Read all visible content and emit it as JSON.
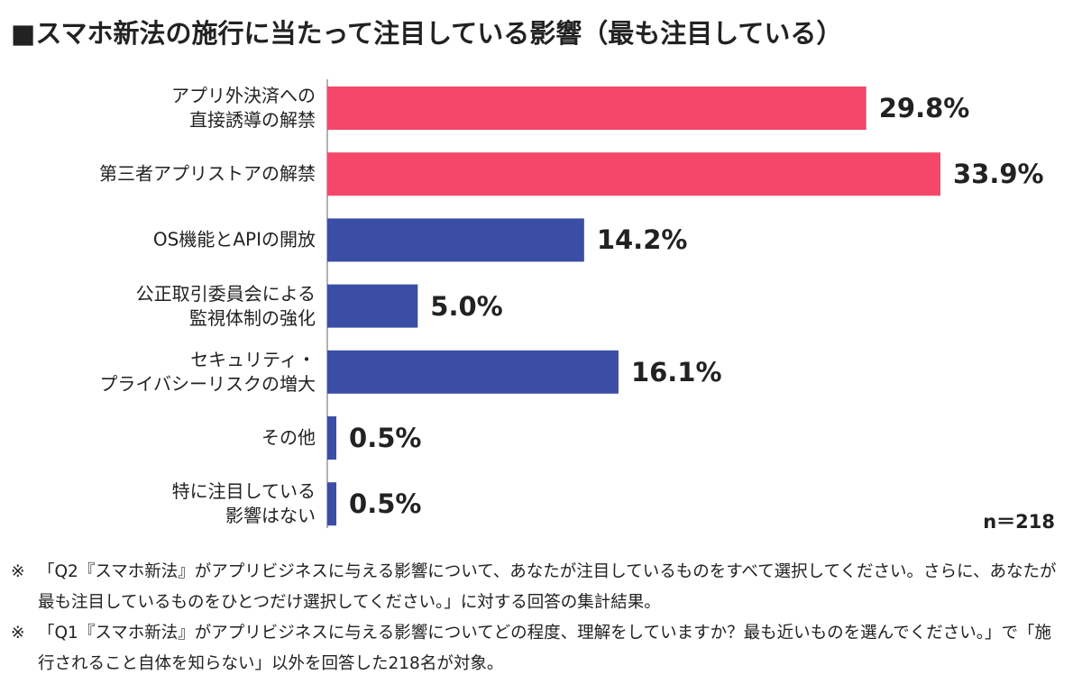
{
  "chart_data": {
    "type": "barh",
    "title": "■スマホ新法の施行に当たって注目している影響（最も注目している）",
    "categories": [
      "アプリ外決済への\n直接誘導の解禁",
      "第三者アプリストアの解禁",
      "OS機能とAPIの開放",
      "公正取引委員会による\n監視体制の強化",
      "セキュリティ・\nプライバシーリスクの増大",
      "その他",
      "特に注目している\n影響はない"
    ],
    "values": [
      29.8,
      33.9,
      14.2,
      5.0,
      16.1,
      0.5,
      0.5
    ],
    "value_labels": [
      "29.8%",
      "33.9%",
      "14.2%",
      "5.0%",
      "16.1%",
      "0.5%",
      "0.5%"
    ],
    "colors": [
      "#f5476a",
      "#f5476a",
      "#3a4ea6",
      "#3a4ea6",
      "#3a4ea6",
      "#3a4ea6",
      "#3a4ea6"
    ],
    "sample_note": "n＝218",
    "notes": [
      {
        "mark": "※",
        "text": "「Q2『スマホ新法』がアプリビジネスに与える影響について、あなたが注目しているものをすべて選択してください。さらに、あなたが最も注目しているものをひとつだけ選択してください。」に対する回答の集計結果。"
      },
      {
        "mark": "※",
        "text": "「Q1『スマホ新法』がアプリビジネスに与える影響についてどの程度、理解をしていますか？最も近いものを選んでください。」で「施行されること自体を知らない」以外を回答した218名が対象。"
      }
    ]
  }
}
